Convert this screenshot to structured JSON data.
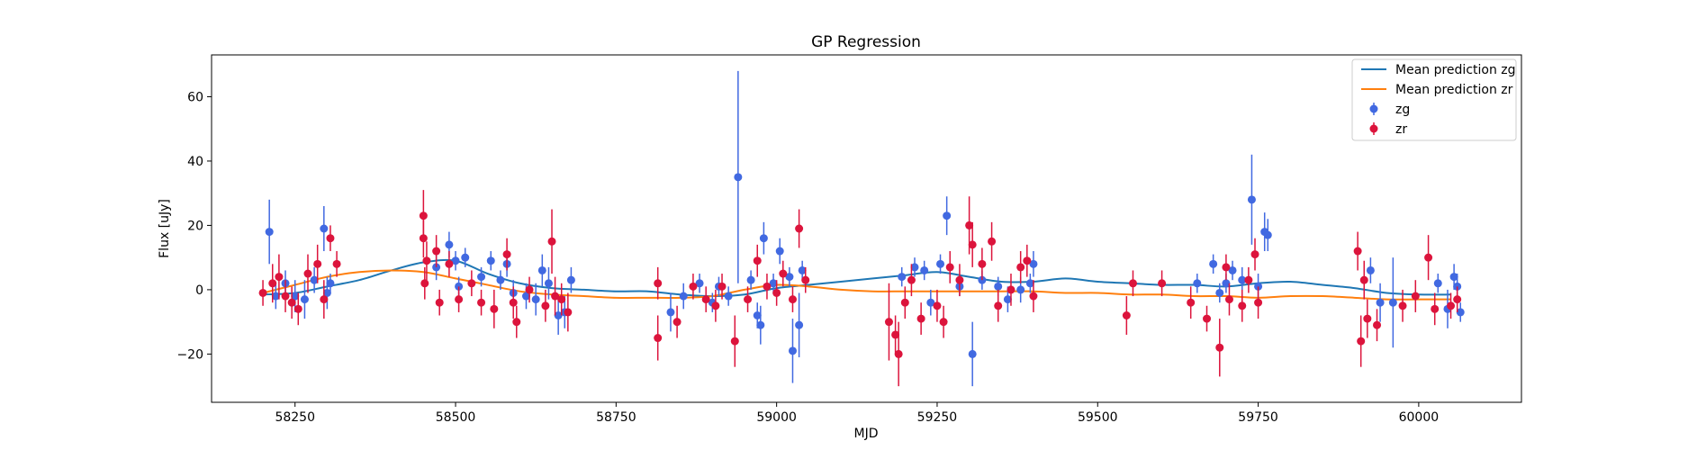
{
  "chart_data": {
    "type": "scatter",
    "title": "GP Regression",
    "xlabel": "MJD",
    "ylabel": "Flux [uJy]",
    "xlim": [
      58120,
      60160
    ],
    "ylim": [
      -35,
      73
    ],
    "xticks": [
      58250,
      58500,
      58750,
      59000,
      59250,
      59500,
      59750,
      60000
    ],
    "yticks": [
      -20,
      0,
      20,
      40,
      60
    ],
    "grid": false,
    "legend_position": "top-right",
    "series": [
      {
        "name": "Mean prediction zg",
        "kind": "line",
        "color": "#1f77b4",
        "x": [
          58200,
          58250,
          58300,
          58350,
          58400,
          58450,
          58500,
          58550,
          58600,
          58650,
          58700,
          58750,
          58800,
          58850,
          58900,
          58950,
          59000,
          59050,
          59100,
          59150,
          59200,
          59250,
          59300,
          59350,
          59400,
          59450,
          59500,
          59550,
          59600,
          59650,
          59700,
          59750,
          59800,
          59850,
          59900,
          59950,
          60000,
          60050
        ],
        "y": [
          -1.5,
          -1,
          1,
          3,
          6,
          8.5,
          9,
          5,
          2,
          0.5,
          0,
          -0.5,
          -0.5,
          -1.5,
          -2,
          -1.5,
          0.5,
          1.5,
          2.5,
          3.5,
          4.5,
          5.5,
          4,
          2.5,
          2.5,
          3.5,
          2.5,
          2,
          1.5,
          1.5,
          1,
          2,
          2.5,
          1.5,
          0.5,
          -1,
          -1.5,
          -1.5
        ]
      },
      {
        "name": "Mean prediction zr",
        "kind": "line",
        "color": "#ff7f0e",
        "x": [
          58200,
          58250,
          58300,
          58350,
          58400,
          58450,
          58500,
          58550,
          58600,
          58650,
          58700,
          58750,
          58800,
          58850,
          58900,
          58950,
          59000,
          59050,
          59100,
          59150,
          59200,
          59250,
          59300,
          59350,
          59400,
          59450,
          59500,
          59550,
          59600,
          59650,
          59700,
          59750,
          59800,
          59850,
          59900,
          59950,
          60000,
          60050
        ],
        "y": [
          -1,
          1.5,
          4,
          5.5,
          6,
          5.5,
          3.5,
          1.5,
          -0.5,
          -1.5,
          -2,
          -2.5,
          -2.5,
          -2.5,
          -2,
          0,
          1.5,
          1,
          0,
          -0.5,
          -0.5,
          -0.5,
          -0.5,
          -0.5,
          -0.5,
          -1,
          -1,
          -1.5,
          -1.5,
          -2,
          -2,
          -2.5,
          -2,
          -2,
          -2.5,
          -3,
          -3,
          -3
        ]
      },
      {
        "name": "zg",
        "kind": "errorbar",
        "color": "#4169e1",
        "points": [
          [
            58210,
            18,
            10
          ],
          [
            58220,
            -2,
            4
          ],
          [
            58235,
            2,
            4
          ],
          [
            58250,
            -2,
            5
          ],
          [
            58265,
            -3,
            6
          ],
          [
            58280,
            3,
            4
          ],
          [
            58295,
            19,
            7
          ],
          [
            58300,
            -1,
            5
          ],
          [
            58305,
            2,
            3
          ],
          [
            58470,
            7,
            4
          ],
          [
            58490,
            14,
            4
          ],
          [
            58500,
            9,
            3
          ],
          [
            58505,
            1,
            3
          ],
          [
            58515,
            10,
            3
          ],
          [
            58540,
            4,
            3
          ],
          [
            58555,
            9,
            3
          ],
          [
            58570,
            3,
            3
          ],
          [
            58580,
            8,
            4
          ],
          [
            58590,
            -1,
            4
          ],
          [
            58610,
            -2,
            4
          ],
          [
            58625,
            -3,
            5
          ],
          [
            58635,
            6,
            5
          ],
          [
            58645,
            2,
            5
          ],
          [
            58660,
            -8,
            6
          ],
          [
            58670,
            -7,
            5
          ],
          [
            58680,
            3,
            4
          ],
          [
            58835,
            -7,
            6
          ],
          [
            58855,
            -2,
            4
          ],
          [
            58880,
            2,
            3
          ],
          [
            58900,
            -4,
            3
          ],
          [
            58910,
            1,
            3
          ],
          [
            58925,
            -2,
            3
          ],
          [
            58940,
            35,
            33
          ],
          [
            58960,
            3,
            3
          ],
          [
            58970,
            -8,
            4
          ],
          [
            58975,
            -11,
            6
          ],
          [
            58980,
            16,
            5
          ],
          [
            58995,
            2,
            3
          ],
          [
            59005,
            12,
            4
          ],
          [
            59020,
            4,
            3
          ],
          [
            59025,
            -19,
            10
          ],
          [
            59035,
            -11,
            10
          ],
          [
            59040,
            6,
            3
          ],
          [
            59195,
            4,
            3
          ],
          [
            59215,
            7,
            3
          ],
          [
            59230,
            6,
            3
          ],
          [
            59240,
            -4,
            4
          ],
          [
            59255,
            8,
            3
          ],
          [
            59265,
            23,
            6
          ],
          [
            59285,
            1,
            3
          ],
          [
            59305,
            -20,
            10
          ],
          [
            59320,
            3,
            3
          ],
          [
            59345,
            1,
            3
          ],
          [
            59360,
            -3,
            4
          ],
          [
            59380,
            0,
            4
          ],
          [
            59395,
            2,
            3
          ],
          [
            59400,
            8,
            4
          ],
          [
            59655,
            2,
            3
          ],
          [
            59680,
            8,
            3
          ],
          [
            59690,
            -1,
            3
          ],
          [
            59700,
            2,
            3
          ],
          [
            59710,
            6,
            3
          ],
          [
            59725,
            3,
            4
          ],
          [
            59740,
            28,
            14
          ],
          [
            59750,
            1,
            4
          ],
          [
            59760,
            18,
            6
          ],
          [
            59765,
            17,
            5
          ],
          [
            59925,
            6,
            4
          ],
          [
            59940,
            -4,
            6
          ],
          [
            59960,
            -4,
            14
          ],
          [
            60030,
            2,
            3
          ],
          [
            60045,
            -6,
            6
          ],
          [
            60055,
            4,
            4
          ],
          [
            60060,
            1,
            4
          ],
          [
            60065,
            -7,
            3
          ]
        ]
      },
      {
        "name": "zr",
        "kind": "errorbar",
        "color": "#dc143c",
        "points": [
          [
            58200,
            -1,
            4
          ],
          [
            58215,
            2,
            6
          ],
          [
            58225,
            4,
            7
          ],
          [
            58235,
            -2,
            5
          ],
          [
            58245,
            -4,
            5
          ],
          [
            58255,
            -6,
            5
          ],
          [
            58270,
            5,
            6
          ],
          [
            58285,
            8,
            6
          ],
          [
            58295,
            -3,
            6
          ],
          [
            58305,
            16,
            4
          ],
          [
            58315,
            8,
            4
          ],
          [
            58450,
            23,
            8
          ],
          [
            58450,
            16,
            6
          ],
          [
            58452,
            2,
            5
          ],
          [
            58455,
            9,
            6
          ],
          [
            58470,
            12,
            5
          ],
          [
            58475,
            -4,
            4
          ],
          [
            58490,
            8,
            4
          ],
          [
            58505,
            -3,
            4
          ],
          [
            58525,
            2,
            4
          ],
          [
            58540,
            -4,
            4
          ],
          [
            58560,
            -6,
            6
          ],
          [
            58580,
            11,
            5
          ],
          [
            58590,
            -4,
            5
          ],
          [
            58595,
            -10,
            5
          ],
          [
            58615,
            0,
            4
          ],
          [
            58640,
            -5,
            5
          ],
          [
            58650,
            15,
            10
          ],
          [
            58655,
            -2,
            6
          ],
          [
            58665,
            -3,
            5
          ],
          [
            58675,
            -7,
            6
          ],
          [
            58815,
            2,
            5
          ],
          [
            58815,
            -15,
            7
          ],
          [
            58845,
            -10,
            5
          ],
          [
            58870,
            1,
            4
          ],
          [
            58890,
            -3,
            4
          ],
          [
            58905,
            -5,
            5
          ],
          [
            58915,
            1,
            4
          ],
          [
            58935,
            -16,
            8
          ],
          [
            58955,
            -3,
            4
          ],
          [
            58970,
            9,
            5
          ],
          [
            58985,
            1,
            4
          ],
          [
            59000,
            -1,
            4
          ],
          [
            59010,
            5,
            4
          ],
          [
            59025,
            -3,
            4
          ],
          [
            59035,
            19,
            6
          ],
          [
            59045,
            3,
            4
          ],
          [
            59175,
            -10,
            12
          ],
          [
            59185,
            -14,
            6
          ],
          [
            59190,
            -20,
            10
          ],
          [
            59200,
            -4,
            5
          ],
          [
            59210,
            3,
            5
          ],
          [
            59225,
            -9,
            5
          ],
          [
            59250,
            -5,
            5
          ],
          [
            59260,
            -10,
            5
          ],
          [
            59270,
            7,
            5
          ],
          [
            59285,
            3,
            5
          ],
          [
            59300,
            20,
            9
          ],
          [
            59305,
            14,
            7
          ],
          [
            59320,
            8,
            5
          ],
          [
            59335,
            15,
            6
          ],
          [
            59345,
            -5,
            5
          ],
          [
            59365,
            0,
            5
          ],
          [
            59380,
            7,
            5
          ],
          [
            59390,
            9,
            5
          ],
          [
            59400,
            -2,
            5
          ],
          [
            59545,
            -8,
            6
          ],
          [
            59555,
            2,
            4
          ],
          [
            59600,
            2,
            4
          ],
          [
            59645,
            -4,
            5
          ],
          [
            59670,
            -9,
            4
          ],
          [
            59690,
            -18,
            9
          ],
          [
            59700,
            7,
            4
          ],
          [
            59705,
            -3,
            5
          ],
          [
            59725,
            -5,
            5
          ],
          [
            59735,
            3,
            4
          ],
          [
            59745,
            11,
            5
          ],
          [
            59750,
            -4,
            5
          ],
          [
            59905,
            12,
            6
          ],
          [
            59910,
            -16,
            8
          ],
          [
            59915,
            3,
            6
          ],
          [
            59920,
            -9,
            6
          ],
          [
            59935,
            -11,
            5
          ],
          [
            59975,
            -5,
            5
          ],
          [
            59995,
            -2,
            5
          ],
          [
            60015,
            10,
            7
          ],
          [
            60025,
            -6,
            5
          ],
          [
            60050,
            -5,
            4
          ],
          [
            60060,
            -3,
            4
          ]
        ]
      }
    ]
  }
}
